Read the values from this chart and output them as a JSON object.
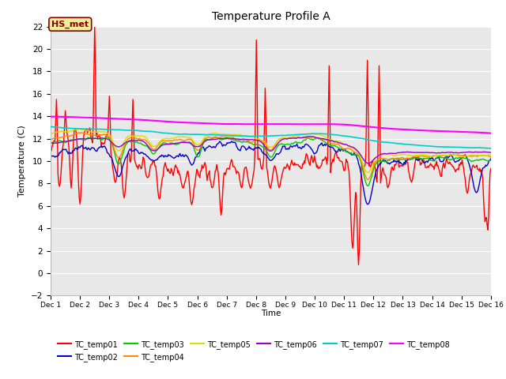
{
  "title": "Temperature Profile A",
  "xlabel": "Time",
  "ylabel": "Temperature (C)",
  "xlim": [
    0,
    15
  ],
  "ylim": [
    -2,
    22
  ],
  "yticks": [
    -2,
    0,
    2,
    4,
    6,
    8,
    10,
    12,
    14,
    16,
    18,
    20,
    22
  ],
  "xtick_labels": [
    "Dec 1",
    "Dec 2",
    "Dec 3",
    "Dec 4",
    "Dec 5",
    "Dec 6",
    "Dec 7",
    "Dec 8",
    "Dec 9",
    "Dec 10",
    "Dec 11",
    "Dec 12",
    "Dec 13",
    "Dec 14",
    "Dec 15",
    "Dec 16"
  ],
  "xtick_positions": [
    0,
    1,
    2,
    3,
    4,
    5,
    6,
    7,
    8,
    9,
    10,
    11,
    12,
    13,
    14,
    15
  ],
  "bg_color": "#e8e8e8",
  "legend_entries": [
    "TC_temp01",
    "TC_temp02",
    "TC_temp03",
    "TC_temp04",
    "TC_temp05",
    "TC_temp06",
    "TC_temp07",
    "TC_temp08"
  ],
  "line_colors": [
    "#ff0000",
    "#0000cc",
    "#00cc00",
    "#ff8800",
    "#dddd00",
    "#9900cc",
    "#00cccc",
    "#ff00ff"
  ],
  "hs_met_label": "HS_met",
  "hs_met_color": "#880000",
  "hs_met_bg": "#eeee99"
}
